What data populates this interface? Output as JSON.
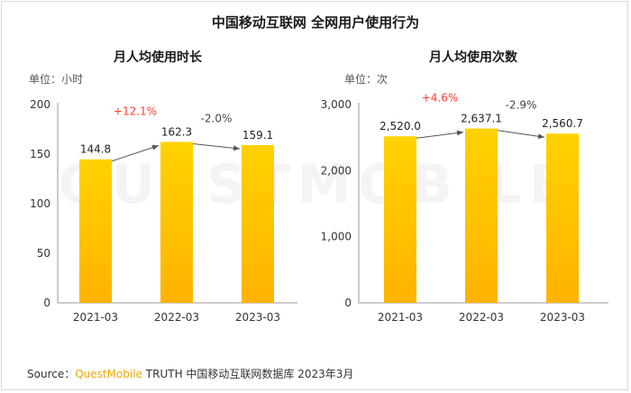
{
  "title": "中国移动互联网 全网用户使用行为",
  "watermark": "QUESTMOBILE",
  "source": {
    "prefix": "Source：",
    "brand": "QuestMobile",
    "suffix": " TRUTH 中国移动互联网数据库 2023年3月"
  },
  "colors": {
    "bar_top": "#ffd200",
    "bar_bottom": "#ffb300",
    "positive_growth": "#ff3b30",
    "negative_growth": "#444444"
  },
  "chart_data": [
    {
      "type": "bar",
      "title": "月人均使用时长",
      "unit_label": "单位：小时",
      "categories": [
        "2021-03",
        "2022-03",
        "2023-03"
      ],
      "values": [
        144.8,
        162.3,
        159.1
      ],
      "value_labels": [
        "144.8",
        "162.3",
        "159.1"
      ],
      "growth_labels": [
        "+12.1%",
        "-2.0%"
      ],
      "ylim": [
        0,
        200
      ],
      "yticks": [
        0,
        50,
        100,
        150,
        200
      ],
      "ytick_labels": [
        "0",
        "50",
        "100",
        "150",
        "200"
      ],
      "grid": false
    },
    {
      "type": "bar",
      "title": "月人均使用次数",
      "unit_label": "单位：次",
      "categories": [
        "2021-03",
        "2022-03",
        "2023-03"
      ],
      "values": [
        2520.0,
        2637.1,
        2560.7
      ],
      "value_labels": [
        "2,520.0",
        "2,637.1",
        "2,560.7"
      ],
      "growth_labels": [
        "+4.6%",
        "-2.9%"
      ],
      "ylim": [
        0,
        3000
      ],
      "yticks": [
        0,
        1000,
        2000,
        3000
      ],
      "ytick_labels": [
        "0",
        "1,000",
        "2,000",
        "3,000"
      ],
      "grid": false
    }
  ]
}
